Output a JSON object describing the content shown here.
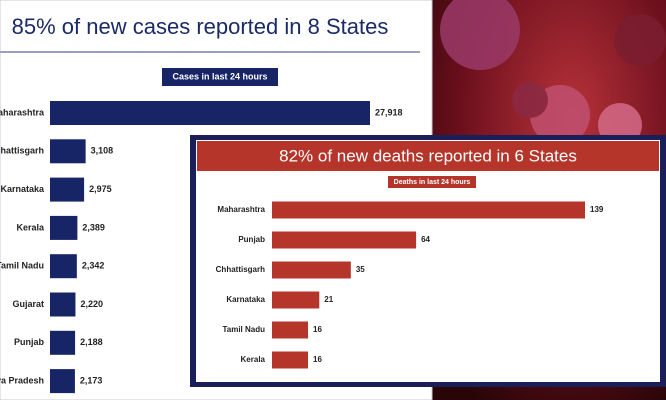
{
  "chart_data": [
    {
      "type": "bar",
      "orientation": "horizontal",
      "title": "85% of new cases reported in 8 States",
      "subtitle": "Cases in last 24 hours",
      "categories": [
        "Maharashtra",
        "Chhattisgarh",
        "Karnataka",
        "Kerala",
        "Tamil Nadu",
        "Gujarat",
        "Punjab",
        "Madhya Pradesh"
      ],
      "values": [
        27918,
        3108,
        2975,
        2389,
        2342,
        2220,
        2188,
        2173
      ],
      "value_labels": [
        "27,918",
        "3,108",
        "2,975",
        "2,389",
        "2,342",
        "2,220",
        "2,188",
        "2,173"
      ],
      "color": "#172566"
    },
    {
      "type": "bar",
      "orientation": "horizontal",
      "title": "82% of new deaths reported in 6 States",
      "subtitle": "Deaths in last 24 hours",
      "categories": [
        "Maharashtra",
        "Punjab",
        "Chhattisgarh",
        "Karnataka",
        "Tamil Nadu",
        "Kerala"
      ],
      "values": [
        139,
        64,
        35,
        21,
        16,
        16
      ],
      "color": "#b5352b"
    }
  ]
}
